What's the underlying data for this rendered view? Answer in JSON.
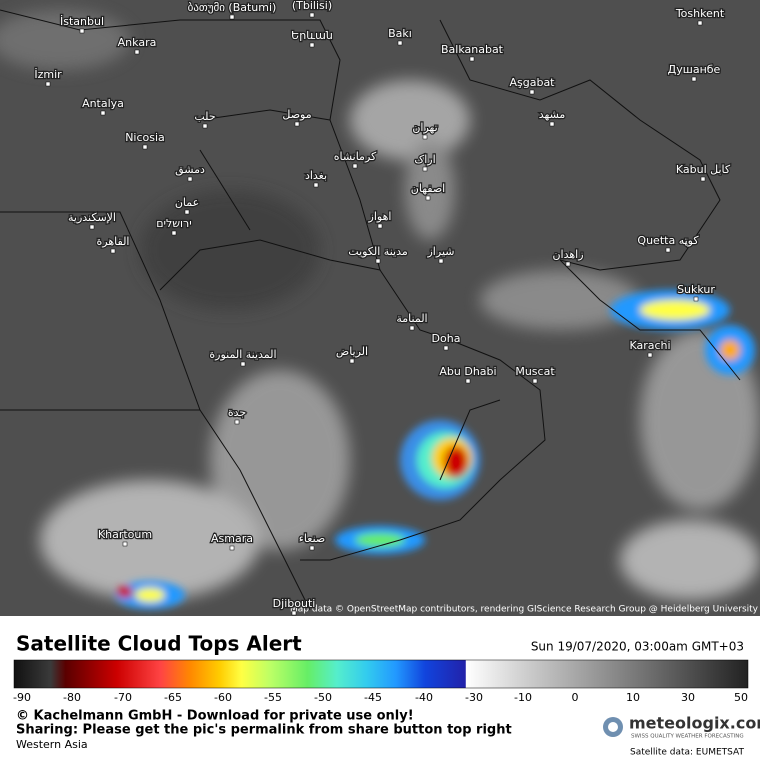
{
  "map": {
    "cities": [
      "İstanbul",
      "ბათუმი (Batumi)",
      "(Tbilisi)",
      "Ankara",
      "Երևան",
      "Bakı",
      "Balkanabat",
      "Toshkent",
      "İzmir",
      "Aşgabat",
      "Душанбе",
      "Antalya",
      "حلب",
      "موصل",
      "مشهد",
      "تهران",
      "Nicosia",
      "دمشق",
      "بغداد",
      "کرمانشاه",
      "اراک",
      "Kabul کابل",
      "اصفهان",
      "عمان",
      "الإسكندرية",
      "ירושלים",
      "اهواز",
      "القاهرة",
      "Quetta کوټه",
      "مدينة الكويت",
      "شیراز",
      "زاهدان",
      "Sukkur",
      "المنامة",
      "Doha",
      "Karachi",
      "المدينة المنورة",
      "الرياض",
      "Abu Dhabi",
      "Muscat",
      "جدة",
      "Khartoum",
      "Asmara",
      "صنعاء",
      "Djibouti"
    ],
    "attribution": "Map data © OpenStreetMap contributors, rendering GIScience Research Group @ Heidelberg University"
  },
  "footer": {
    "title": "Satellite Cloud Tops Alert",
    "timestamp": "Sun 19/07/2020, 03:00am GMT+03",
    "scale_ticks": [
      -90,
      -80,
      -70,
      -65,
      -60,
      -55,
      -50,
      -45,
      -40,
      -30,
      -10,
      0,
      10,
      30,
      50
    ],
    "copyright": "© Kachelmann GmbH - Download for private use only!",
    "sharing": "Sharing: Please get the pic's permalink from share button top right",
    "region": "Western Asia",
    "brand": "meteologix.com",
    "brand_tagline": "SWISS QUALITY WEATHER FORECASTING",
    "source": "Satellite data: EUMETSAT"
  }
}
